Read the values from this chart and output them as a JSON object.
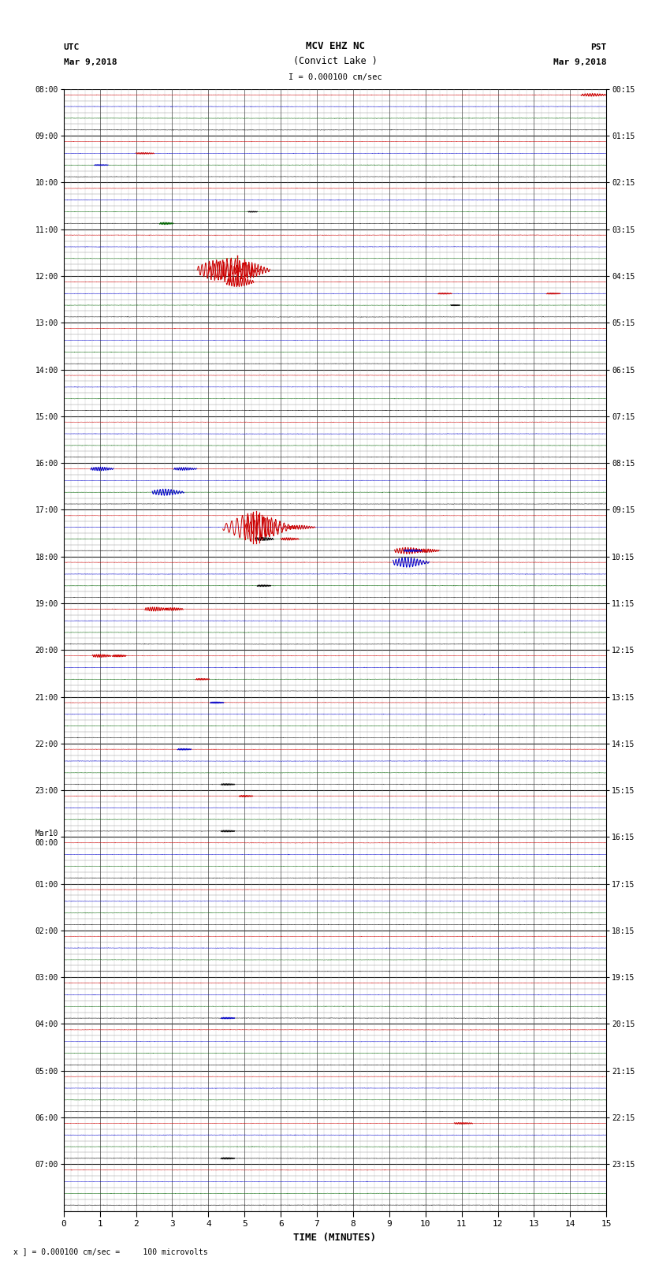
{
  "title_line1": "MCV EHZ NC",
  "title_line2": "(Convict Lake )",
  "scale_label": "I = 0.000100 cm/sec",
  "left_timezone": "UTC",
  "left_date": "Mar 9,2018",
  "right_timezone": "PST",
  "right_date": "Mar 9,2018",
  "footer_note": "x ] = 0.000100 cm/sec =     100 microvolts",
  "xlabel": "TIME (MINUTES)",
  "num_rows": 96,
  "trace_duration_minutes": 15,
  "background_color": "#ffffff",
  "noise_amplitude": 0.015,
  "row_colors": [
    "#cc0000",
    "#0000cc",
    "#006400",
    "#000000"
  ],
  "hour_labels_left": [
    "08:00",
    "09:00",
    "10:00",
    "11:00",
    "12:00",
    "13:00",
    "14:00",
    "15:00",
    "16:00",
    "17:00",
    "18:00",
    "19:00",
    "20:00",
    "21:00",
    "22:00",
    "23:00",
    "Mar10\n00:00",
    "01:00",
    "02:00",
    "03:00",
    "04:00",
    "05:00",
    "06:00",
    "07:00"
  ],
  "hour_labels_right": [
    "00:15",
    "01:15",
    "02:15",
    "03:15",
    "04:15",
    "05:15",
    "06:15",
    "07:15",
    "08:15",
    "09:15",
    "10:15",
    "11:15",
    "12:15",
    "13:15",
    "14:15",
    "15:15",
    "16:15",
    "17:15",
    "18:15",
    "19:15",
    "20:15",
    "21:15",
    "22:15",
    "23:15"
  ],
  "spikes": [
    {
      "row": 0,
      "minute": 14.6,
      "amplitude": 0.35,
      "color": "#cc0000",
      "duration": 0.3
    },
    {
      "row": 5,
      "minute": 2.2,
      "amplitude": 0.18,
      "color": "#cc0000",
      "duration": 0.2
    },
    {
      "row": 6,
      "minute": 1.0,
      "amplitude": 0.12,
      "color": "#0000cc",
      "duration": 0.15
    },
    {
      "row": 10,
      "minute": 5.2,
      "amplitude": 0.1,
      "color": "#000000",
      "duration": 0.1
    },
    {
      "row": 11,
      "minute": 2.8,
      "amplitude": 0.25,
      "color": "#006400",
      "duration": 0.15
    },
    {
      "row": 15,
      "minute": 4.2,
      "amplitude": 2.5,
      "color": "#cc0000",
      "duration": 0.5
    },
    {
      "row": 15,
      "minute": 4.6,
      "amplitude": 3.0,
      "color": "#cc0000",
      "duration": 0.6
    },
    {
      "row": 15,
      "minute": 5.1,
      "amplitude": 2.0,
      "color": "#cc0000",
      "duration": 0.4
    },
    {
      "row": 16,
      "minute": 4.8,
      "amplitude": 1.2,
      "color": "#cc0000",
      "duration": 0.3
    },
    {
      "row": 17,
      "minute": 10.5,
      "amplitude": 0.15,
      "color": "#cc0000",
      "duration": 0.15
    },
    {
      "row": 17,
      "minute": 13.5,
      "amplitude": 0.15,
      "color": "#cc0000",
      "duration": 0.15
    },
    {
      "row": 18,
      "minute": 10.8,
      "amplitude": 0.12,
      "color": "#000000",
      "duration": 0.1
    },
    {
      "row": 32,
      "minute": 1.0,
      "amplitude": 0.45,
      "color": "#0000cc",
      "duration": 0.25
    },
    {
      "row": 32,
      "minute": 3.3,
      "amplitude": 0.35,
      "color": "#0000cc",
      "duration": 0.25
    },
    {
      "row": 34,
      "minute": 2.8,
      "amplitude": 0.8,
      "color": "#0000cc",
      "duration": 0.35
    },
    {
      "row": 37,
      "minute": 5.2,
      "amplitude": 3.5,
      "color": "#cc0000",
      "duration": 0.8
    },
    {
      "row": 37,
      "minute": 5.6,
      "amplitude": 2.5,
      "color": "#cc0000",
      "duration": 0.6
    },
    {
      "row": 37,
      "minute": 6.5,
      "amplitude": 0.5,
      "color": "#cc0000",
      "duration": 0.3
    },
    {
      "row": 38,
      "minute": 5.5,
      "amplitude": 0.4,
      "color": "#000000",
      "duration": 0.2
    },
    {
      "row": 38,
      "minute": 6.2,
      "amplitude": 0.3,
      "color": "#cc0000",
      "duration": 0.2
    },
    {
      "row": 39,
      "minute": 9.5,
      "amplitude": 0.8,
      "color": "#cc0000",
      "duration": 0.35
    },
    {
      "row": 39,
      "minute": 10.0,
      "amplitude": 0.45,
      "color": "#cc0000",
      "duration": 0.25
    },
    {
      "row": 39,
      "minute": 9.6,
      "amplitude": 0.3,
      "color": "#0000cc",
      "duration": 0.2
    },
    {
      "row": 40,
      "minute": 9.5,
      "amplitude": 1.2,
      "color": "#0000cc",
      "duration": 0.4
    },
    {
      "row": 42,
      "minute": 5.5,
      "amplitude": 0.2,
      "color": "#000000",
      "duration": 0.15
    },
    {
      "row": 44,
      "minute": 2.5,
      "amplitude": 0.5,
      "color": "#cc0000",
      "duration": 0.25
    },
    {
      "row": 44,
      "minute": 3.0,
      "amplitude": 0.35,
      "color": "#cc0000",
      "duration": 0.2
    },
    {
      "row": 48,
      "minute": 1.0,
      "amplitude": 0.35,
      "color": "#cc0000",
      "duration": 0.2
    },
    {
      "row": 48,
      "minute": 1.5,
      "amplitude": 0.25,
      "color": "#cc0000",
      "duration": 0.15
    },
    {
      "row": 50,
      "minute": 3.8,
      "amplitude": 0.18,
      "color": "#cc0000",
      "duration": 0.15
    },
    {
      "row": 52,
      "minute": 4.2,
      "amplitude": 0.18,
      "color": "#0000cc",
      "duration": 0.15
    },
    {
      "row": 56,
      "minute": 3.3,
      "amplitude": 0.18,
      "color": "#0000cc",
      "duration": 0.15
    },
    {
      "row": 59,
      "minute": 4.5,
      "amplitude": 0.2,
      "color": "#000000",
      "duration": 0.15
    },
    {
      "row": 60,
      "minute": 5.0,
      "amplitude": 0.2,
      "color": "#cc0000",
      "duration": 0.15
    },
    {
      "row": 63,
      "minute": 4.5,
      "amplitude": 0.2,
      "color": "#000000",
      "duration": 0.15
    },
    {
      "row": 79,
      "minute": 4.5,
      "amplitude": 0.18,
      "color": "#0000cc",
      "duration": 0.15
    },
    {
      "row": 88,
      "minute": 11.0,
      "amplitude": 0.2,
      "color": "#cc0000",
      "duration": 0.2
    },
    {
      "row": 91,
      "minute": 4.5,
      "amplitude": 0.2,
      "color": "#000000",
      "duration": 0.15
    }
  ]
}
